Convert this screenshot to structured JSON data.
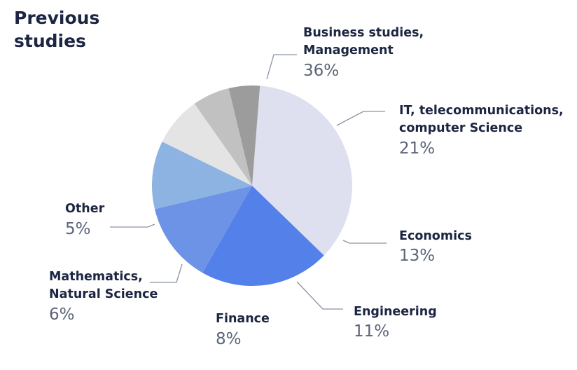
{
  "title": [
    "Previous",
    "studies"
  ],
  "chart_data": {
    "type": "pie",
    "title": "Previous studies",
    "unit": "%",
    "slices": [
      {
        "label": [
          "Business studies,",
          "Management"
        ],
        "value": 36,
        "value_label": "36%",
        "color": "#dedfef"
      },
      {
        "label": [
          "IT, telecommunications,",
          "computer Science"
        ],
        "value": 21,
        "value_label": "21%",
        "color": "#5480ea"
      },
      {
        "label": [
          "Economics"
        ],
        "value": 13,
        "value_label": "13%",
        "color": "#6d93e6"
      },
      {
        "label": [
          "Engineering"
        ],
        "value": 11,
        "value_label": "11%",
        "color": "#8db3e2"
      },
      {
        "label": [
          "Finance"
        ],
        "value": 8,
        "value_label": "8%",
        "color": "#e4e4e4"
      },
      {
        "label": [
          "Mathematics,",
          "Natural Science"
        ],
        "value": 6,
        "value_label": "6%",
        "color": "#c1c1c1"
      },
      {
        "label": [
          "Other"
        ],
        "value": 5,
        "value_label": "5%",
        "color": "#9c9c9c"
      }
    ]
  }
}
